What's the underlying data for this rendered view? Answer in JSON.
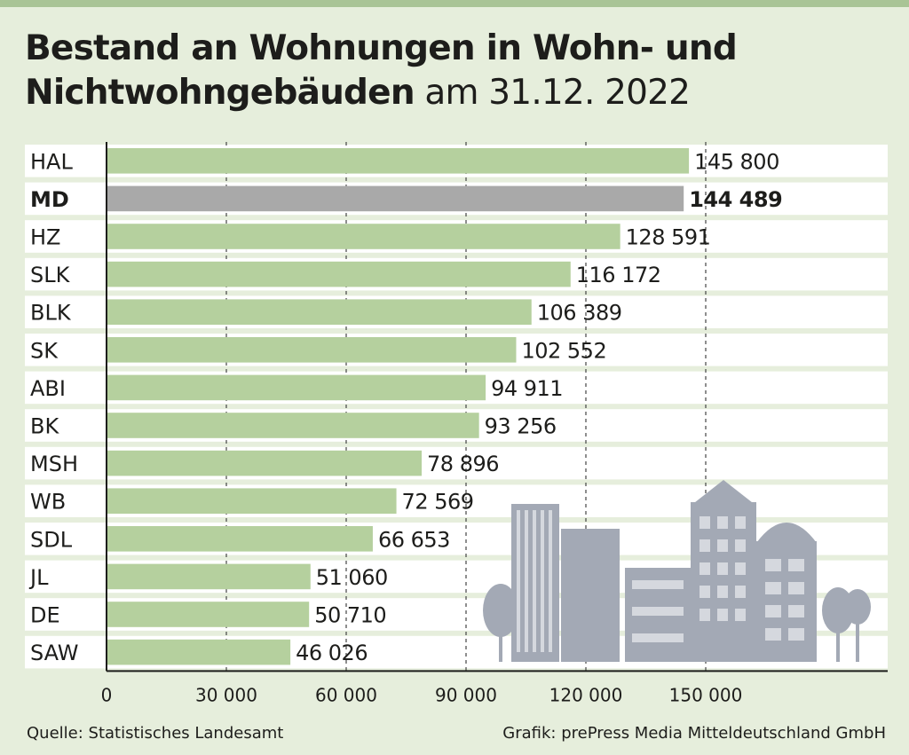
{
  "title": {
    "bold": "Bestand an Wohnungen in Wohn- und",
    "bold2": "Nichtwohngebäuden",
    "rest": "am 31.12. 2022"
  },
  "chart_data": {
    "type": "bar",
    "orientation": "horizontal",
    "categories": [
      "HAL",
      "MD",
      "HZ",
      "SLK",
      "BLK",
      "SK",
      "ABI",
      "BK",
      "MSH",
      "WB",
      "SDL",
      "JL",
      "DE",
      "SAW"
    ],
    "values": [
      145800,
      144489,
      128591,
      116172,
      106389,
      102552,
      94911,
      93256,
      78896,
      72569,
      66653,
      51060,
      50710,
      46026
    ],
    "value_labels": [
      "145 800",
      "144 489",
      "128 591",
      "116 172",
      "106 389",
      "102 552",
      "94 911",
      "93 256",
      "78 896",
      "72 569",
      "66 653",
      "51 060",
      "50 710",
      "46 026"
    ],
    "highlight": "MD",
    "xlim": [
      0,
      150000
    ],
    "ticks": [
      0,
      30000,
      60000,
      90000,
      120000,
      150000
    ],
    "tick_labels": [
      "0",
      "30 000",
      "60 000",
      "90 000",
      "120 000",
      "150 000"
    ],
    "grid": "vertical dashed",
    "colors": {
      "bar": "#b5d09e",
      "highlight": "#a9a9a9",
      "row_band": "#ffffff",
      "illustration": "#a3a9b5"
    }
  },
  "footer": {
    "source": "Quelle: Statistisches Landesamt",
    "credit": "Grafik: prePress Media Mitteldeutschland GmbH"
  }
}
